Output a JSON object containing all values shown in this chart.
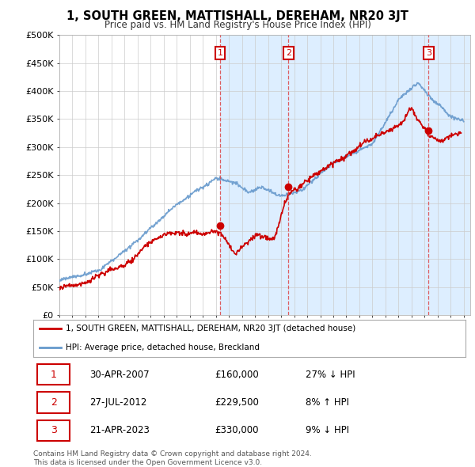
{
  "title": "1, SOUTH GREEN, MATTISHALL, DEREHAM, NR20 3JT",
  "subtitle": "Price paid vs. HM Land Registry's House Price Index (HPI)",
  "ylabel_ticks": [
    "£0",
    "£50K",
    "£100K",
    "£150K",
    "£200K",
    "£250K",
    "£300K",
    "£350K",
    "£400K",
    "£450K",
    "£500K"
  ],
  "ytick_values": [
    0,
    50000,
    100000,
    150000,
    200000,
    250000,
    300000,
    350000,
    400000,
    450000,
    500000
  ],
  "xlim": [
    1995.0,
    2026.5
  ],
  "ylim": [
    0,
    500000
  ],
  "sale_dates": [
    2007.33,
    2012.57,
    2023.31
  ],
  "sale_prices": [
    160000,
    229500,
    330000
  ],
  "sale_labels": [
    "1",
    "2",
    "3"
  ],
  "hpi_color": "#6699cc",
  "price_color": "#cc0000",
  "vline_color": "#dd4444",
  "background_color": "#ffffff",
  "plot_bg_color": "#ffffff",
  "grid_color": "#cccccc",
  "shade_color": "#ddeeff",
  "legend_entries": [
    "1, SOUTH GREEN, MATTISHALL, DEREHAM, NR20 3JT (detached house)",
    "HPI: Average price, detached house, Breckland"
  ],
  "table_data": [
    [
      "1",
      "30-APR-2007",
      "£160,000",
      "27% ↓ HPI"
    ],
    [
      "2",
      "27-JUL-2012",
      "£229,500",
      "8% ↑ HPI"
    ],
    [
      "3",
      "21-APR-2023",
      "£330,000",
      "9% ↓ HPI"
    ]
  ],
  "footnote": "Contains HM Land Registry data © Crown copyright and database right 2024.\nThis data is licensed under the Open Government Licence v3.0.",
  "box_color": "#cc0000"
}
